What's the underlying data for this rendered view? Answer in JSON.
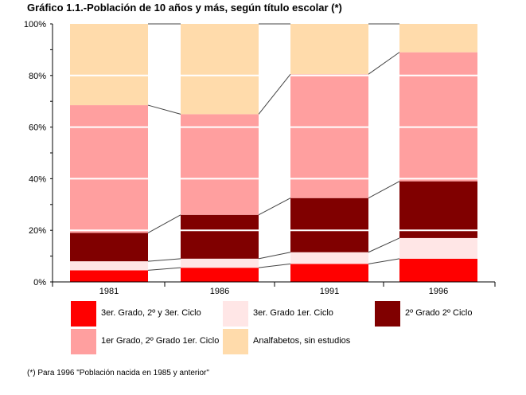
{
  "chart_data": {
    "type": "bar",
    "stacked": true,
    "percent_stacked": true,
    "title": "Gráfico 1.1.-Población de 10 años y más, según título escolar  (*)",
    "categories": [
      "1981",
      "1986",
      "1991",
      "1996"
    ],
    "ylim": [
      0,
      100
    ],
    "y_ticks": [
      "0%",
      "20%",
      "40%",
      "60%",
      "80%",
      "100%"
    ],
    "grid": false,
    "legend_position": "bottom",
    "connector_lines": true,
    "series": [
      {
        "name": "3er. Grado, 2º y 3er. Ciclo",
        "color": "#ff0000",
        "values": [
          4.5,
          5.5,
          7.0,
          9.0
        ]
      },
      {
        "name": "3er. Grado 1er. Ciclo",
        "color": "#ffe6e6",
        "values": [
          3.5,
          3.5,
          4.5,
          8.0
        ]
      },
      {
        "name": "2º Grado 2º Ciclo",
        "color": "#800000",
        "values": [
          11.0,
          17.0,
          21.0,
          22.0
        ]
      },
      {
        "name": "1er Grado, 2º Grado 1er. Ciclo",
        "color": "#ff9f9f",
        "values": [
          49.5,
          39.0,
          48.0,
          50.0
        ]
      },
      {
        "name": "Analfabetos, sin estudios",
        "color": "#ffdbab",
        "values": [
          31.5,
          35.0,
          19.5,
          11.0
        ]
      }
    ]
  },
  "footnote": "(*) Para 1996 \"Población nacida en 1985 y anterior\""
}
